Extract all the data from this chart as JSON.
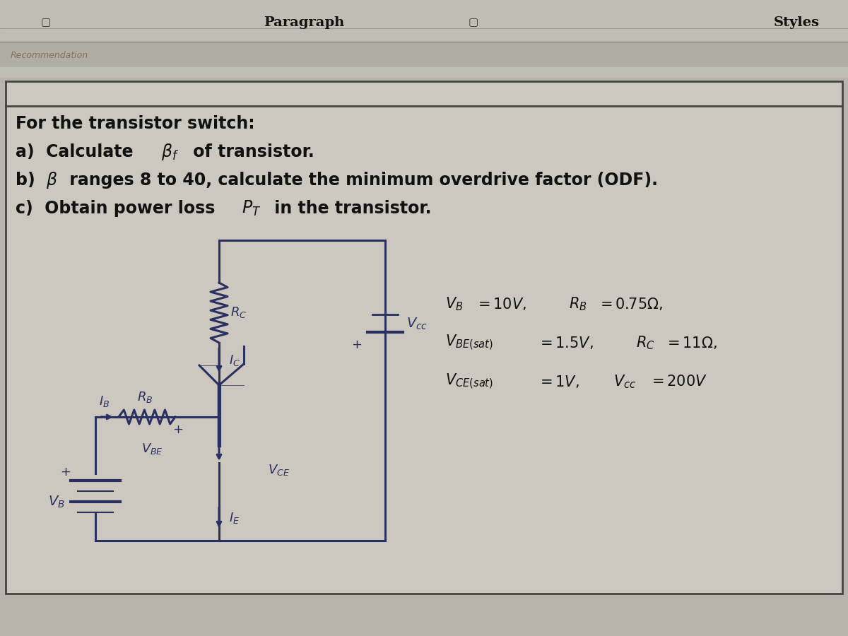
{
  "bg_outer": "#b8b4ac",
  "bg_toolbar": "#c8c4bc",
  "bg_stripe": "#a8a49c",
  "bg_content": "#ccc8c0",
  "circuit_color": "#2a3060",
  "text_color": "#111111",
  "circuit_text_color": "#2a3060",
  "toolbar_text": "Paragraph",
  "styles_text": "Styles",
  "line1": "For the transistor switch:",
  "line2a": "a)  Calculate ",
  "line2b": " of transistor.",
  "line3a": "b)  ",
  "line3b": " ranges 8 to 40, calculate the minimum overdrive factor (ODF).",
  "line4a": "c)  Obtain power loss ",
  "line4b": " in the transistor."
}
